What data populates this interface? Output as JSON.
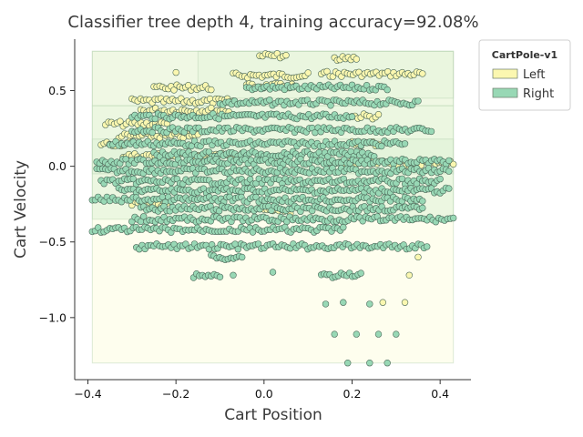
{
  "chart_data": {
    "type": "scatter",
    "title": "Classifier tree depth 4, training accuracy=92.08%",
    "xlabel": "Cart Position",
    "ylabel": "Cart Velocity",
    "xlim": [
      -0.43,
      0.47
    ],
    "ylim": [
      -1.41,
      0.84
    ],
    "xticks": [
      -0.4,
      -0.2,
      0.0,
      0.2,
      0.4
    ],
    "xtick_labels": [
      "−0.4",
      "−0.2",
      "0.0",
      "0.2",
      "0.4"
    ],
    "yticks": [
      0.5,
      0.0,
      -0.5,
      -1.0
    ],
    "ytick_labels": [
      "0.5",
      "0.0",
      "−0.5",
      "−1.0"
    ],
    "grid": false,
    "legend": {
      "title": "CartPole-v1",
      "placement": "top-right",
      "entries": [
        {
          "label": "Left",
          "color": "#fbf7b0"
        },
        {
          "label": "Right",
          "color": "#98d8b5"
        }
      ]
    },
    "colors": {
      "left": "#fbf7b0",
      "right": "#98d8b5",
      "region_left": "#fdfde0",
      "region_right": "#d6efd0",
      "point_edge": "#4d6a5a"
    },
    "decision_regions": [
      {
        "x": [
          -0.39,
          0.43
        ],
        "y": [
          -1.3,
          0.76
        ],
        "class": "Left",
        "opacity": 0.55
      },
      {
        "x": [
          -0.39,
          0.43
        ],
        "y": [
          0.4,
          0.76
        ],
        "class": "Right",
        "opacity": 0.35
      },
      {
        "x": [
          -0.39,
          0.43
        ],
        "y": [
          -0.35,
          0.4
        ],
        "class": "Right",
        "opacity": 0.45
      },
      {
        "x": [
          -0.39,
          0.43
        ],
        "y": [
          -0.05,
          0.18
        ],
        "class": "Right",
        "opacity": 0.35
      },
      {
        "x": [
          -0.15,
          0.43
        ],
        "y": [
          0.45,
          0.76
        ],
        "class": "Right",
        "opacity": 0.25
      }
    ],
    "series": [
      {
        "name": "Left",
        "bands": [
          {
            "y": 0.73,
            "x": [
              -0.01,
              0.05
            ]
          },
          {
            "y": 0.71,
            "x": [
              0.16,
              0.21
            ]
          },
          {
            "y": 0.61,
            "x": [
              0.13,
              0.36
            ]
          },
          {
            "y": 0.6,
            "x": [
              -0.07,
              0.1
            ]
          },
          {
            "y": 0.52,
            "x": [
              -0.25,
              -0.12
            ]
          },
          {
            "y": 0.53,
            "x": [
              -0.04,
              0.07
            ]
          },
          {
            "y": 0.43,
            "x": [
              -0.3,
              -0.07
            ]
          },
          {
            "y": 0.37,
            "x": [
              -0.28,
              -0.08
            ]
          },
          {
            "y": 0.33,
            "x": [
              0.2,
              0.26
            ]
          },
          {
            "y": 0.28,
            "x": [
              -0.36,
              -0.22
            ]
          },
          {
            "y": 0.2,
            "x": [
              -0.33,
              -0.15
            ]
          },
          {
            "y": 0.15,
            "x": [
              -0.37,
              -0.3
            ]
          },
          {
            "y": 0.15,
            "x": [
              0.2,
              0.26
            ]
          },
          {
            "y": 0.07,
            "x": [
              -0.32,
              -0.05
            ]
          },
          {
            "y": 0.02,
            "x": [
              0.15,
              0.43
            ]
          },
          {
            "y": -0.25,
            "x": [
              -0.3,
              -0.22
            ]
          },
          {
            "y": -0.3,
            "x": [
              0.0,
              0.06
            ]
          }
        ],
        "points": [
          {
            "x": -0.2,
            "y": 0.62
          },
          {
            "x": 0.27,
            "y": -0.9
          },
          {
            "x": 0.32,
            "y": -0.9
          },
          {
            "x": 0.33,
            "y": -0.72
          },
          {
            "x": 0.35,
            "y": -0.6
          },
          {
            "x": 0.1,
            "y": 0.33
          }
        ]
      },
      {
        "name": "Right",
        "bands": [
          {
            "y": 0.52,
            "x": [
              -0.04,
              0.28
            ]
          },
          {
            "y": 0.42,
            "x": [
              -0.1,
              0.35
            ]
          },
          {
            "y": 0.33,
            "x": [
              -0.3,
              0.2
            ]
          },
          {
            "y": 0.24,
            "x": [
              -0.3,
              0.38
            ]
          },
          {
            "y": 0.15,
            "x": [
              -0.35,
              0.32
            ]
          },
          {
            "y": 0.08,
            "x": [
              -0.25,
              0.25
            ]
          },
          {
            "y": 0.03,
            "x": [
              -0.38,
              0.42
            ]
          },
          {
            "y": -0.03,
            "x": [
              -0.38,
              0.42
            ]
          },
          {
            "y": -0.1,
            "x": [
              -0.37,
              0.4
            ]
          },
          {
            "y": -0.16,
            "x": [
              -0.33,
              0.42
            ]
          },
          {
            "y": -0.22,
            "x": [
              -0.39,
              0.36
            ]
          },
          {
            "y": -0.28,
            "x": [
              -0.28,
              0.36
            ]
          },
          {
            "y": -0.35,
            "x": [
              -0.3,
              0.43
            ]
          },
          {
            "y": -0.42,
            "x": [
              -0.39,
              0.18
            ]
          },
          {
            "y": -0.53,
            "x": [
              -0.29,
              0.37
            ]
          },
          {
            "y": -0.6,
            "x": [
              -0.12,
              -0.05
            ]
          },
          {
            "y": -0.72,
            "x": [
              -0.16,
              -0.1
            ]
          },
          {
            "y": -0.72,
            "x": [
              0.13,
              0.22
            ]
          }
        ],
        "points": [
          {
            "x": 0.14,
            "y": -0.91
          },
          {
            "x": 0.18,
            "y": -0.9
          },
          {
            "x": 0.24,
            "y": -0.91
          },
          {
            "x": 0.16,
            "y": -1.11
          },
          {
            "x": 0.21,
            "y": -1.11
          },
          {
            "x": 0.26,
            "y": -1.11
          },
          {
            "x": 0.3,
            "y": -1.11
          },
          {
            "x": 0.19,
            "y": -1.3
          },
          {
            "x": 0.24,
            "y": -1.3
          },
          {
            "x": 0.28,
            "y": -1.3
          },
          {
            "x": -0.07,
            "y": -0.72
          },
          {
            "x": 0.02,
            "y": -0.7
          }
        ]
      }
    ]
  }
}
